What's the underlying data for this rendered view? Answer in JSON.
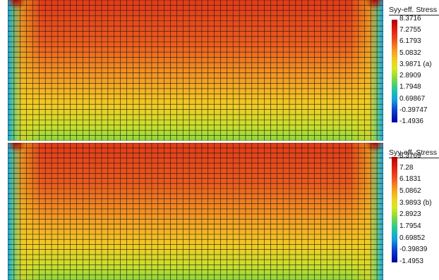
{
  "panels": [
    {
      "tag": "(a)",
      "legend_title": "Syy-eff. Stress",
      "tick_labels": [
        "8.3716",
        "7.2755",
        "6.1793",
        "5.0832",
        "3.9871",
        "2.8909",
        "1.7948",
        "0.69867",
        "-0.39747",
        "-1.4936"
      ]
    },
    {
      "tag": "(b)",
      "legend_title": "Syy-eff. Stress",
      "tick_labels": [
        "8.3769",
        "7.28",
        "6.1831",
        "5.0862",
        "3.9893",
        "2.8923",
        "1.7954",
        "0.69852",
        "-0.39839",
        "-1.4953"
      ]
    }
  ],
  "colors": {
    "high": "#e8401a",
    "mid": "#f5c21c",
    "low": "#8fd63c",
    "edge_min": "#1e9be0",
    "mesh_line": "#1a1a1a"
  }
}
